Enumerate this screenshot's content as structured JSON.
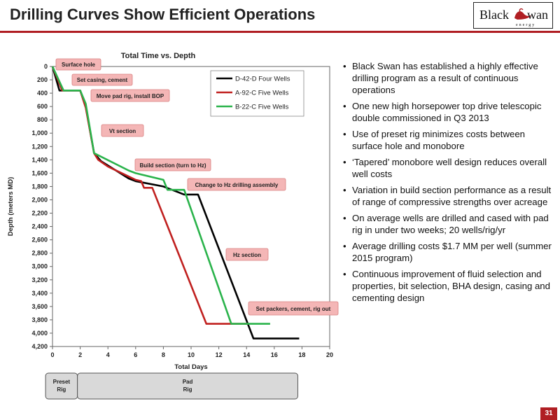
{
  "slide": {
    "title": "Drilling Curves Show Efficient Operations",
    "page_number": "31",
    "accent_color": "#b01e23",
    "logo": {
      "name": "Black Swan energy",
      "text_left": "Black",
      "text_right": "wan",
      "subtext": "energy"
    }
  },
  "bullets": [
    "Black Swan has established a highly effective drilling program as a result of continuous operations",
    "One new high horsepower top drive telescopic double commissioned in Q3 2013",
    "Use of preset rig minimizes costs between surface hole and monobore",
    "‘Tapered’ monobore well design reduces overall well costs",
    " Variation in build section performance as a result of range of compressive strengths over acreage",
    "On average wells are drilled and cased with pad rig in under two weeks; 20 wells/rig/yr",
    "Average drilling costs $1.7 MM per well (summer 2015 program)",
    "Continuous improvement of fluid selection and properties, bit selection, BHA design, casing and cementing design"
  ],
  "chart_data": {
    "type": "line",
    "title": "Total Time vs. Depth",
    "xlabel": "Total Days",
    "ylabel": "Depth (meters MD)",
    "xlim": [
      0,
      20
    ],
    "ylim": [
      4200,
      0
    ],
    "y_inverted": true,
    "x_ticks": [
      0,
      2,
      4,
      6,
      8,
      10,
      12,
      14,
      16,
      18,
      20
    ],
    "x_tick_labels": [
      "0",
      "2",
      "4",
      "6",
      "8",
      "10",
      "12",
      "14",
      "16",
      "18",
      "20"
    ],
    "y_ticks": [
      0,
      200,
      400,
      600,
      800,
      1000,
      1200,
      1400,
      1600,
      1800,
      2000,
      2200,
      2400,
      2600,
      2800,
      3000,
      3200,
      3400,
      3600,
      3800,
      4000,
      4200
    ],
    "y_tick_labels": [
      "0",
      "200",
      "400",
      "600",
      "800",
      "1,000",
      "1,200",
      "1,400",
      "1,600",
      "1,800",
      "2,000",
      "2,200",
      "2,400",
      "2,600",
      "2,800",
      "3,000",
      "3,200",
      "3,400",
      "3,600",
      "3,800",
      "4,000",
      "4,200"
    ],
    "grid": false,
    "legend_position": "top-right",
    "series": [
      {
        "name": "D-42-D Four Wells",
        "color": "#000000",
        "x": [
          0,
          0.5,
          2.0,
          2.4,
          3.0,
          3.5,
          5.5,
          6.0,
          8.0,
          9.5,
          10.0,
          10.5,
          14.5,
          17.8
        ],
        "y": [
          0,
          360,
          360,
          600,
          1300,
          1420,
          1680,
          1720,
          1800,
          1920,
          1920,
          1920,
          4080,
          4080
        ]
      },
      {
        "name": "A-92-C Five Wells",
        "color": "#c0201f",
        "x": [
          0,
          0.7,
          2.0,
          2.4,
          3.0,
          3.3,
          4.0,
          6.0,
          6.4,
          6.6,
          7.0,
          7.2,
          11.1,
          14.1
        ],
        "y": [
          0,
          360,
          360,
          620,
          1300,
          1400,
          1500,
          1700,
          1720,
          1820,
          1820,
          1820,
          3860,
          3860
        ]
      },
      {
        "name": "B-22-C Five Wells",
        "color": "#2ab34b",
        "x": [
          0,
          0.8,
          2.0,
          2.4,
          3.0,
          5.5,
          6.0,
          8.0,
          8.3,
          9.5,
          12.9,
          15.7
        ],
        "y": [
          0,
          360,
          360,
          560,
          1300,
          1560,
          1600,
          1700,
          1850,
          1850,
          3860,
          3860
        ]
      }
    ],
    "annotations": [
      "Surface hole",
      "Set casing, cement",
      "Move pad rig, install BOP",
      "Vt section",
      "Build section (turn to Hz)",
      "Change to Hz drilling assembly",
      "Hz section",
      "Set packers, cement, rig out"
    ],
    "phases": [
      {
        "label_line1": "Preset",
        "label_line2": "Rig",
        "x_range": [
          -0.5,
          1.8
        ]
      },
      {
        "label_line1": "Pad",
        "label_line2": "Rig",
        "x_range": [
          1.8,
          17.7
        ]
      }
    ]
  }
}
